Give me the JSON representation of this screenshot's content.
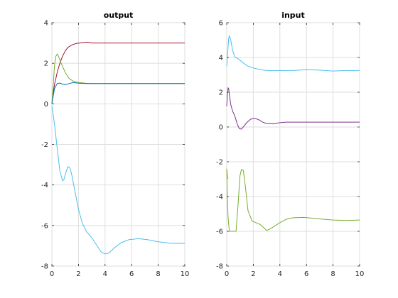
{
  "chart_data": [
    {
      "type": "line",
      "title": "output",
      "xlim": [
        0,
        10
      ],
      "ylim": [
        -8,
        4
      ],
      "xticks": [
        "0",
        "2",
        "4",
        "6",
        "8",
        "10"
      ],
      "yticks": [
        "-8",
        "-6",
        "-4",
        "-2",
        "0",
        "2",
        "4"
      ],
      "grid": true,
      "series": [
        {
          "color": "#a2142f",
          "x": [
            0,
            0.1,
            0.2,
            0.4,
            0.6,
            0.8,
            1.0,
            1.2,
            1.5,
            1.8,
            2.1,
            2.4,
            2.7,
            3.0,
            10
          ],
          "y": [
            0,
            0.55,
            0.95,
            1.55,
            2.0,
            2.35,
            2.6,
            2.78,
            2.9,
            2.97,
            3.0,
            3.03,
            3.04,
            3.0,
            3.0
          ]
        },
        {
          "color": "#77ac30",
          "x": [
            0,
            0.1,
            0.2,
            0.3,
            0.4,
            0.5,
            0.7,
            1.0,
            1.3,
            1.6,
            2.0,
            2.5,
            3.0,
            10
          ],
          "y": [
            0,
            0.9,
            1.9,
            2.35,
            2.45,
            2.35,
            2.0,
            1.55,
            1.25,
            1.12,
            1.05,
            1.02,
            1.0,
            1.0
          ]
        },
        {
          "color": "#0072bd",
          "x": [
            0,
            0.1,
            0.2,
            0.4,
            0.6,
            0.8,
            1.0,
            1.3,
            1.6,
            2.0,
            2.5,
            3.0,
            10
          ],
          "y": [
            0,
            0.4,
            0.75,
            1.0,
            1.02,
            0.97,
            0.95,
            1.0,
            1.05,
            1.02,
            1.0,
            1.0,
            1.0
          ]
        },
        {
          "color": "#4dbeee",
          "x": [
            0,
            0.2,
            0.4,
            0.6,
            0.8,
            0.9,
            1.0,
            1.2,
            1.35,
            1.5,
            1.7,
            2.0,
            2.3,
            2.6,
            3.0,
            3.4,
            3.7,
            4.0,
            4.3,
            4.7,
            5.2,
            5.8,
            6.5,
            7.2,
            8.0,
            9.0,
            10
          ],
          "y": [
            -0.1,
            -1.0,
            -2.2,
            -3.3,
            -3.8,
            -3.75,
            -3.5,
            -3.1,
            -3.15,
            -3.5,
            -4.2,
            -5.2,
            -5.9,
            -6.3,
            -6.6,
            -7.0,
            -7.3,
            -7.4,
            -7.35,
            -7.1,
            -6.85,
            -6.7,
            -6.65,
            -6.7,
            -6.8,
            -6.88,
            -6.88
          ]
        }
      ]
    },
    {
      "type": "line",
      "title": "input",
      "xlim": [
        0,
        10
      ],
      "ylim": [
        -8,
        6
      ],
      "xticks": [
        "0",
        "2",
        "4",
        "6",
        "8",
        "10"
      ],
      "yticks": [
        "-8",
        "-6",
        "-4",
        "-2",
        "0",
        "2",
        "4",
        "6"
      ],
      "grid": true,
      "series": [
        {
          "color": "#4dbeee",
          "x": [
            0,
            0.05,
            0.1,
            0.15,
            0.2,
            0.3,
            0.45,
            0.6,
            0.8,
            1.0,
            1.3,
            1.6,
            2.0,
            2.5,
            3.0,
            4.0,
            5.0,
            6.0,
            7.0,
            8.0,
            9.0,
            10
          ],
          "y": [
            3.5,
            4.0,
            4.6,
            5.1,
            5.25,
            5.0,
            4.4,
            4.05,
            3.95,
            3.85,
            3.65,
            3.5,
            3.4,
            3.3,
            3.25,
            3.25,
            3.25,
            3.3,
            3.27,
            3.22,
            3.25,
            3.25
          ]
        },
        {
          "color": "#7e2f8e",
          "x": [
            0,
            0.05,
            0.1,
            0.15,
            0.2,
            0.3,
            0.45,
            0.6,
            0.8,
            0.95,
            1.1,
            1.3,
            1.5,
            1.8,
            2.1,
            2.4,
            2.7,
            3.0,
            3.5,
            4.0,
            4.5,
            5,
            10
          ],
          "y": [
            1.2,
            1.8,
            2.25,
            2.2,
            1.9,
            1.3,
            0.9,
            0.65,
            0.15,
            -0.1,
            -0.12,
            0.05,
            0.25,
            0.45,
            0.5,
            0.42,
            0.28,
            0.2,
            0.18,
            0.25,
            0.28,
            0.28,
            0.28
          ]
        },
        {
          "color": "#edb120",
          "x": [
            0,
            0.05,
            0.1
          ],
          "y": [
            -2.4,
            -2.7,
            -3.0
          ]
        },
        {
          "color": "#77ac30",
          "x": [
            0,
            0.05,
            0.1,
            0.2,
            0.3,
            0.5,
            0.7,
            0.85,
            1.0,
            1.1,
            1.25,
            1.4,
            1.6,
            1.9,
            2.2,
            2.5,
            2.8,
            3.0,
            3.3,
            3.7,
            4.0,
            4.5,
            5.0,
            5.8,
            6.5,
            7.2,
            8.0,
            9.0,
            10
          ],
          "y": [
            -2.4,
            -4.0,
            -5.2,
            -6.0,
            -6.0,
            -6.0,
            -6.0,
            -4.5,
            -2.8,
            -2.45,
            -2.5,
            -3.4,
            -4.8,
            -5.4,
            -5.5,
            -5.6,
            -5.8,
            -5.95,
            -5.85,
            -5.65,
            -5.5,
            -5.3,
            -5.22,
            -5.2,
            -5.25,
            -5.3,
            -5.35,
            -5.38,
            -5.35
          ]
        }
      ]
    }
  ]
}
